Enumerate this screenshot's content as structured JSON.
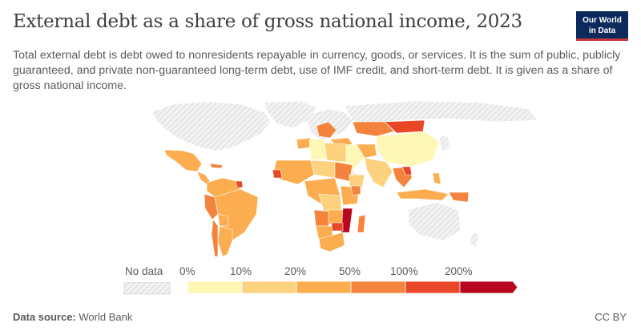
{
  "title": "External debt as a share of gross national income, 2023",
  "subtitle": "Total external debt is debt owed to nonresidents repayable in currency, goods, or services. It is the sum of public, publicly guaranteed, and private non-guaranteed long-term debt, use of IMF credit, and short-term debt. It is given as a share of gross national income.",
  "logo": {
    "line1": "Our World",
    "line2": "in Data"
  },
  "legend": {
    "no_data_label": "No data",
    "ticks": [
      "0%",
      "10%",
      "20%",
      "50%",
      "100%",
      "200%"
    ],
    "colors": [
      "#fef7b5",
      "#fdd27e",
      "#fbad4f",
      "#f4843d",
      "#e84728",
      "#b9061f"
    ]
  },
  "chart_data": {
    "type": "choropleth",
    "title": "External debt as a share of gross national income, 2023",
    "bins": [
      {
        "range": "0%–10%",
        "color": "#fef7b5"
      },
      {
        "range": "10%–20%",
        "color": "#fdd27e"
      },
      {
        "range": "20%–50%",
        "color": "#fbad4f"
      },
      {
        "range": "50%–100%",
        "color": "#f4843d"
      },
      {
        "range": "100%–200%",
        "color": "#e84728"
      },
      {
        "range": ">200%",
        "color": "#b9061f"
      }
    ],
    "no_data_pattern": "hatched grey"
  },
  "footer": {
    "source_label": "Data source:",
    "source_value": "World Bank",
    "license": "CC BY"
  }
}
